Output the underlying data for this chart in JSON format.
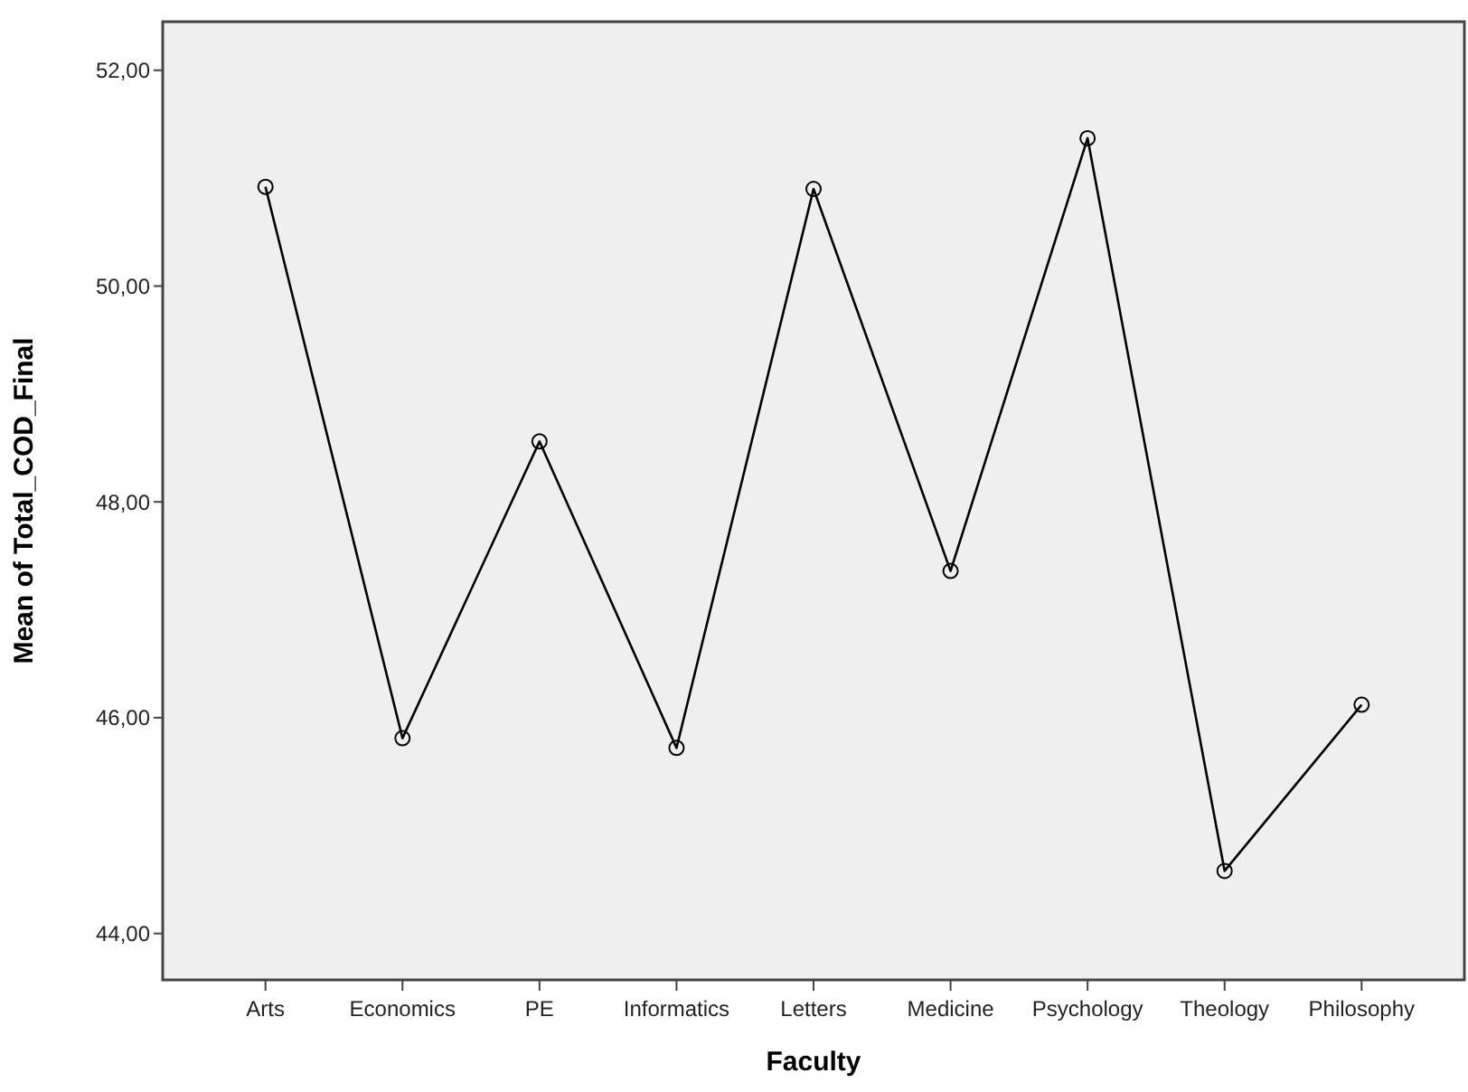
{
  "chart_data": {
    "type": "line",
    "xlabel": "Faculty",
    "ylabel": "Mean of Total_COD_Final",
    "categories": [
      "Arts",
      "Economics",
      "PE",
      "Informatics",
      "Letters",
      "Medicine",
      "Psychology",
      "Theology",
      "Philosophy"
    ],
    "series": [
      {
        "color": "#000000",
        "values": [
          50.92,
          45.81,
          48.56,
          45.72,
          50.9,
          47.36,
          51.37,
          44.58,
          46.12
        ]
      }
    ],
    "ylim": [
      43.57,
      52.45
    ],
    "yticks": [
      {
        "value": 44,
        "label": "44,00"
      },
      {
        "value": 46,
        "label": "46,00"
      },
      {
        "value": 48,
        "label": "48,00"
      },
      {
        "value": 50,
        "label": "50,00"
      },
      {
        "value": 52,
        "label": "52,00"
      }
    ],
    "grid": false,
    "marker": "circle",
    "line_style": "solid"
  }
}
